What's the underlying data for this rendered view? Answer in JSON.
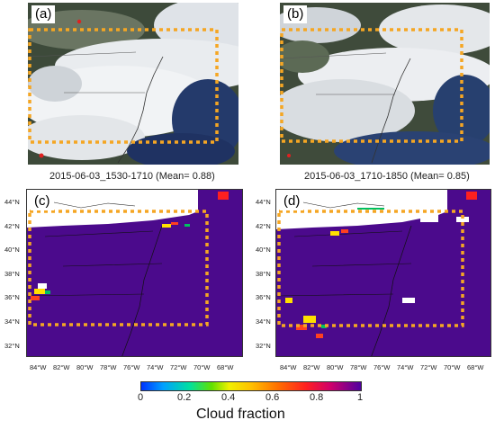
{
  "panels": [
    {
      "label": "(a)",
      "type": "satellite"
    },
    {
      "label": "(b)",
      "type": "satellite"
    },
    {
      "label": "(c)",
      "type": "map"
    },
    {
      "label": "(d)",
      "type": "map"
    }
  ],
  "captions": {
    "a": "2015-06-03_1530-1710  (Mean= 0.88)",
    "b": "2015-06-03_1710-1850  (Mean= 0.85)"
  },
  "chart_data": {
    "type": "heatmap",
    "lat_ticks": [
      "44°N",
      "42°N",
      "40°N",
      "38°N",
      "36°N",
      "34°N",
      "32°N"
    ],
    "lon_ticks": [
      "84°W",
      "82°W",
      "80°W",
      "78°W",
      "76°W",
      "74°W",
      "72°W",
      "70°W",
      "68°W"
    ],
    "colorbar": {
      "label": "Cloud fraction",
      "ticks": [
        "0",
        "0.2",
        "0.4",
        "0.6",
        "0.8",
        "1"
      ],
      "range": [
        0,
        1
      ],
      "colors": [
        "#0033ff",
        "#00a0ff",
        "#00e0a0",
        "#f0f000",
        "#ffc000",
        "#ff7000",
        "#ff2020",
        "#5000a0"
      ]
    },
    "means": [
      0.88,
      0.85
    ],
    "field_color": "#4b0a8c",
    "box_color": "#f5a623"
  }
}
